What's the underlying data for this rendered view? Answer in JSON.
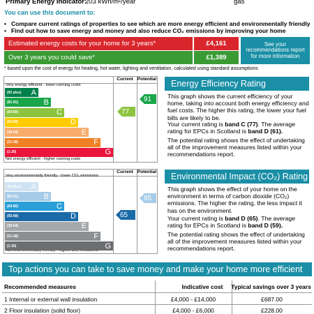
{
  "header": {
    "label": "Primary Energy Indicator:",
    "value": "203 kWh/m²/year",
    "fuel": "gas"
  },
  "intro": {
    "heading": "You can use this document to:",
    "bullets": [
      "Compare current ratings of properties to see which are more energy efficient and environmentally friendly",
      "Find out how to save energy and money and also reduce CO₂ emissions by improving your home"
    ]
  },
  "costs": {
    "estimated_label": "Estimated energy costs for your home for 3 years*",
    "estimated_value": "£4,161",
    "over3_label": "Over 3 years you could save*",
    "over3_value": "£1,389",
    "recommendations_note": "See your recommendations report for more information",
    "footnote": "* based upon the cost of energy for heating, hot water, lighting and ventilation, calculated using standard assumptions"
  },
  "ee_chart": {
    "col_current": "Current",
    "col_potential": "Potential",
    "top_label": "Very energy efficient - lower running costs",
    "bottom_label": "Not energy efficient - higher running costs",
    "bands": [
      {
        "range": "(92 plus)",
        "letter": "A",
        "color": "#00804a"
      },
      {
        "range": "(81-91)",
        "letter": "B",
        "color": "#19a54a"
      },
      {
        "range": "(69-80)",
        "letter": "C",
        "color": "#8cc43f"
      },
      {
        "range": "(55-68)",
        "letter": "D",
        "color": "#ffcc00"
      },
      {
        "range": "(39-54)",
        "letter": "E",
        "color": "#f7ac6b"
      },
      {
        "range": "(21-38)",
        "letter": "F",
        "color": "#ef8023"
      },
      {
        "range": "(1-20)",
        "letter": "G",
        "color": "#e9153b"
      }
    ],
    "current_value": "77",
    "potential_value": "91"
  },
  "ei_chart": {
    "col_current": "Current",
    "col_potential": "Potential",
    "top_label": "Very environmentally friendly - lower CO₂ emissions",
    "bottom_label": "Not environmentally friendly - higher CO₂ emissions",
    "bands": [
      {
        "range": "(92 plus)",
        "letter": "A",
        "color": "#cfe2f3"
      },
      {
        "range": "(81-91)",
        "letter": "B",
        "color": "#a6cbe8"
      },
      {
        "range": "(69-80)",
        "letter": "C",
        "color": "#2a9fd8"
      },
      {
        "range": "(55-68)",
        "letter": "D",
        "color": "#1b6aa8"
      },
      {
        "range": "(39-54)",
        "letter": "E",
        "color": "#a5a8ab"
      },
      {
        "range": "(21-38)",
        "letter": "F",
        "color": "#8c8f92"
      },
      {
        "range": "(1-20)",
        "letter": "G",
        "color": "#6c6e70"
      }
    ],
    "current_value": "65",
    "potential_value": "85"
  },
  "ee_panel": {
    "title": "Energy Efficiency Rating",
    "p1": "This graph shows the current efficiency of your home, taking into account both energy efficiency and fuel costs. The higher this rating, the lower your fuel bills are likely to be.",
    "p2a": "Your current rating is ",
    "p2b": "band C (77)",
    "p2c": ". The average rating for EPCs in Scotland is ",
    "p2d": "band D (61).",
    "p3": "The potential rating shows the effect of undertaking all of the improvement measures listed within your recommendations report."
  },
  "ei_panel": {
    "title": "Environmental Impact (CO₂) Rating",
    "p1": "This graph shows the effect of your home on the environment in terms of carbon dioxide (CO₂) emissions. The higher the rating, the less impact it has on the environment.",
    "p2a": "Your current rating is ",
    "p2b": "band D (65)",
    "p2c": ". The average rating for EPCs in Scotland is ",
    "p2d": "band D (59).",
    "p3": "The potential rating shows the effect of undertaking all of the improvement measures listed within your recommendations report."
  },
  "actions": {
    "title": "Top actions you can take to save money and make your home more efficient",
    "headers": [
      "Recommended measures",
      "Indicative cost",
      "Typical savings over 3 years"
    ],
    "rows": [
      {
        "measure": "1 Internal or external wall insulation",
        "cost": "£4,000 - £14,000",
        "saving": "£687.00"
      },
      {
        "measure": "2 Floor insulation (solid floor)",
        "cost": "£4,000 - £6,000",
        "saving": "£228.00"
      }
    ]
  },
  "colors": {
    "accent": "#1a8fa6",
    "cost_red": "#d9262c",
    "save_green": "#3a9b35"
  }
}
